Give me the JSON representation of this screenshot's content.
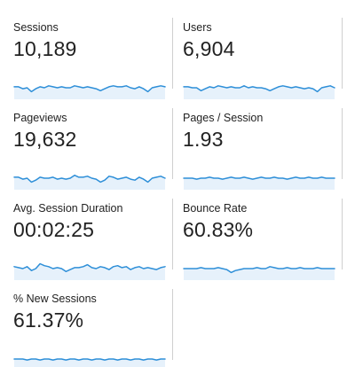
{
  "metrics": [
    {
      "key": "sessions",
      "label": "Sessions",
      "value": "10,189",
      "trend": [
        0.55,
        0.55,
        0.45,
        0.5,
        0.3,
        0.45,
        0.55,
        0.5,
        0.6,
        0.55,
        0.5,
        0.55,
        0.5,
        0.5,
        0.6,
        0.55,
        0.5,
        0.55,
        0.5,
        0.45,
        0.35,
        0.45,
        0.55,
        0.6,
        0.55,
        0.55,
        0.6,
        0.5,
        0.45,
        0.55,
        0.45,
        0.3,
        0.5,
        0.55,
        0.6,
        0.55
      ]
    },
    {
      "key": "users",
      "label": "Users",
      "value": "6,904",
      "trend": [
        0.55,
        0.55,
        0.5,
        0.5,
        0.35,
        0.45,
        0.55,
        0.5,
        0.6,
        0.55,
        0.5,
        0.55,
        0.5,
        0.5,
        0.6,
        0.5,
        0.55,
        0.5,
        0.5,
        0.45,
        0.35,
        0.45,
        0.55,
        0.6,
        0.55,
        0.5,
        0.55,
        0.5,
        0.45,
        0.5,
        0.45,
        0.3,
        0.5,
        0.55,
        0.6,
        0.5
      ]
    },
    {
      "key": "pageviews",
      "label": "Pageviews",
      "value": "19,632",
      "trend": [
        0.55,
        0.55,
        0.45,
        0.5,
        0.3,
        0.4,
        0.55,
        0.5,
        0.5,
        0.55,
        0.45,
        0.5,
        0.45,
        0.5,
        0.65,
        0.55,
        0.55,
        0.6,
        0.5,
        0.45,
        0.3,
        0.4,
        0.6,
        0.55,
        0.45,
        0.5,
        0.55,
        0.45,
        0.4,
        0.55,
        0.45,
        0.3,
        0.5,
        0.55,
        0.6,
        0.5
      ]
    },
    {
      "key": "pages_per_session",
      "label": "Pages / Session",
      "value": "1.93",
      "trend": [
        0.5,
        0.5,
        0.5,
        0.45,
        0.5,
        0.5,
        0.55,
        0.5,
        0.5,
        0.45,
        0.5,
        0.55,
        0.5,
        0.5,
        0.55,
        0.5,
        0.45,
        0.5,
        0.55,
        0.5,
        0.5,
        0.55,
        0.5,
        0.5,
        0.45,
        0.5,
        0.55,
        0.5,
        0.5,
        0.55,
        0.5,
        0.5,
        0.55,
        0.5,
        0.5,
        0.5
      ]
    },
    {
      "key": "avg_session_duration",
      "label": "Avg. Session Duration",
      "value": "00:02:25",
      "trend": [
        0.6,
        0.55,
        0.5,
        0.6,
        0.4,
        0.5,
        0.75,
        0.65,
        0.6,
        0.5,
        0.55,
        0.5,
        0.35,
        0.45,
        0.55,
        0.55,
        0.6,
        0.7,
        0.55,
        0.5,
        0.6,
        0.55,
        0.45,
        0.6,
        0.65,
        0.55,
        0.6,
        0.45,
        0.55,
        0.6,
        0.5,
        0.55,
        0.5,
        0.45,
        0.55,
        0.6
      ]
    },
    {
      "key": "bounce_rate",
      "label": "Bounce Rate",
      "value": "60.83%",
      "trend": [
        0.5,
        0.5,
        0.5,
        0.5,
        0.55,
        0.5,
        0.5,
        0.5,
        0.55,
        0.5,
        0.45,
        0.3,
        0.4,
        0.45,
        0.5,
        0.5,
        0.5,
        0.55,
        0.5,
        0.5,
        0.6,
        0.55,
        0.5,
        0.5,
        0.55,
        0.5,
        0.5,
        0.55,
        0.5,
        0.5,
        0.5,
        0.55,
        0.5,
        0.5,
        0.5,
        0.5
      ]
    },
    {
      "key": "new_sessions",
      "label": "% New Sessions",
      "value": "61.37%",
      "trend": [
        0.5,
        0.5,
        0.5,
        0.45,
        0.5,
        0.5,
        0.45,
        0.5,
        0.5,
        0.45,
        0.5,
        0.5,
        0.45,
        0.5,
        0.5,
        0.45,
        0.5,
        0.5,
        0.45,
        0.5,
        0.5,
        0.45,
        0.5,
        0.5,
        0.45,
        0.5,
        0.5,
        0.45,
        0.5,
        0.5,
        0.45,
        0.5,
        0.5,
        0.45,
        0.5,
        0.5
      ]
    }
  ],
  "colors": {
    "line": "#2e8fd8",
    "area": "#e6f1fb",
    "divider": "#cfcfcf",
    "text": "#222222"
  }
}
